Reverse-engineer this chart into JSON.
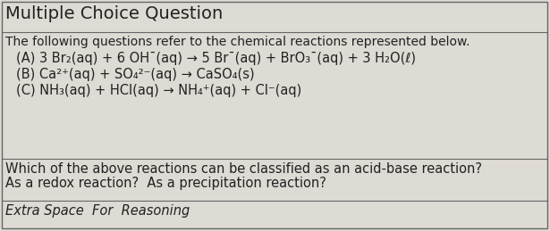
{
  "title": "Multiple Choice Question",
  "intro": "The following questions refer to the chemical reactions represented below.",
  "reaction_A": "(A) 3 Br₂(aq) + 6 OH¯(aq) → 5 Br¯(aq) + BrO₃¯(aq) + 3 H₂O(ℓ)",
  "reaction_B": "(B) Ca²⁺(aq) + SO₄²⁻(aq) → CaSO₄(s)",
  "reaction_C": "(C) NH₃(aq) + HCl(aq) → NH₄⁺(aq) + Cl⁻(aq)",
  "question_line1": "Which of the above reactions can be classified as an acid-base reaction?",
  "question_line2": "As a redox reaction?  As a precipitation reaction?",
  "footer": "Extra Space  For  Reasoning",
  "bg_color": "#dedad4",
  "text_color": "#222222",
  "border_color": "#666666",
  "title_fontsize": 14,
  "intro_fontsize": 10,
  "reaction_fontsize": 10.5,
  "question_fontsize": 10.5,
  "footer_fontsize": 10.5
}
